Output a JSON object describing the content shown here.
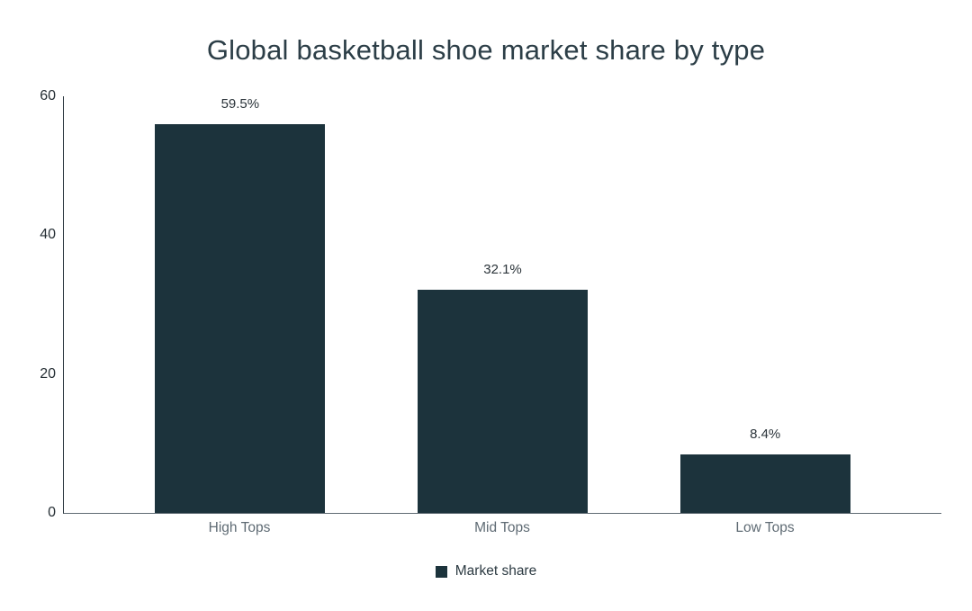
{
  "chart_data": {
    "type": "bar",
    "title": "Global basketball shoe market share by type",
    "categories": [
      "High Tops",
      "Mid Tops",
      "Low Tops"
    ],
    "series": [
      {
        "name": "Market share",
        "values": [
          59.5,
          32.1,
          8.4
        ]
      }
    ],
    "data_labels": [
      "59.5%",
      "32.1%",
      "8.4%"
    ],
    "xlabel": "",
    "ylabel": "",
    "ylim": [
      0,
      60
    ],
    "yticks": [
      0,
      20,
      40,
      60
    ],
    "grid": false,
    "legend_position": "bottom",
    "bar_color": "#1c333c"
  },
  "colors": {
    "bar": "#1c333c",
    "title_text": "#2c3e47",
    "y_tick_text": "#252e34",
    "x_tick_text": "#5f6b74",
    "legend_text": "#2c3a42",
    "y_axis_line": "#2b373f",
    "x_axis_line": "#5f6b73",
    "background": "#ffffff"
  }
}
